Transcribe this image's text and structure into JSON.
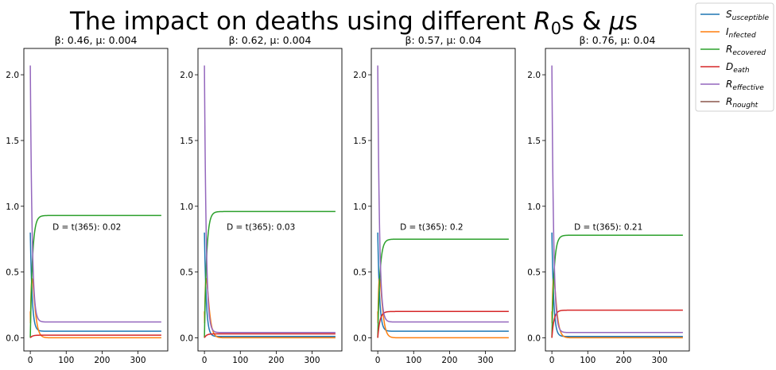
{
  "chart_data": {
    "type": "line",
    "suptitle": "The impact on deaths using different",
    "suptitle_math": {
      "R": "R",
      "sub": "0",
      "s1": "s & ",
      "mu": "μ",
      "s2": "s"
    },
    "legend": {
      "placement": "upper-right-outside",
      "entries": [
        {
          "main": "S",
          "sub": "usceptible",
          "color": "#1f77b4"
        },
        {
          "main": "I",
          "sub": "nfected",
          "color": "#ff7f0e"
        },
        {
          "main": "R",
          "sub": "ecovered",
          "color": "#2ca02c"
        },
        {
          "main": "D",
          "sub": "eath",
          "color": "#d62728"
        },
        {
          "main": "R",
          "sub": "effective",
          "color": "#9467bd"
        },
        {
          "main": "R",
          "sub": "nought",
          "color": "#8c564b"
        }
      ]
    },
    "xticks": [
      0,
      100,
      200,
      300
    ],
    "yticks": [
      0.0,
      0.5,
      1.0,
      1.5,
      2.0
    ],
    "ytick_labels": [
      "0.0",
      "0.5",
      "1.0",
      "1.5",
      "2.0"
    ],
    "xlim": [
      -18,
      383
    ],
    "ylim": [
      -0.1,
      2.2
    ],
    "panels": [
      {
        "title": "β: 0.46, μ: 0.004",
        "annotation": "D = t(365): 0.02",
        "annotation_xy": [
          62,
          0.82
        ],
        "curves": {
          "S": 0.05,
          "I": 0.0,
          "R": 0.93,
          "D": 0.02,
          "Reff": 0.12,
          "R0": 0.02
        },
        "R0_value": 2.07
      },
      {
        "title": "β: 0.62, μ: 0.004",
        "annotation": "D = t(365): 0.03",
        "annotation_xy": [
          62,
          0.82
        ],
        "curves": {
          "S": 0.01,
          "I": 0.0,
          "R": 0.96,
          "D": 0.03,
          "Reff": 0.04,
          "R0": 0.03
        },
        "R0_value": 2.07
      },
      {
        "title": "β: 0.57, μ: 0.04",
        "annotation": "D = t(365): 0.2",
        "annotation_xy": [
          62,
          0.82
        ],
        "curves": {
          "S": 0.05,
          "I": 0.0,
          "R": 0.75,
          "D": 0.2,
          "Reff": 0.12,
          "R0": 0.2
        },
        "R0_value": 2.07
      },
      {
        "title": "β: 0.76, μ: 0.04",
        "annotation": "D = t(365): 0.21",
        "annotation_xy": [
          62,
          0.82
        ],
        "curves": {
          "S": 0.01,
          "I": 0.0,
          "R": 0.78,
          "D": 0.21,
          "Reff": 0.04,
          "R0": 0.21
        },
        "R0_value": 2.07
      }
    ]
  }
}
